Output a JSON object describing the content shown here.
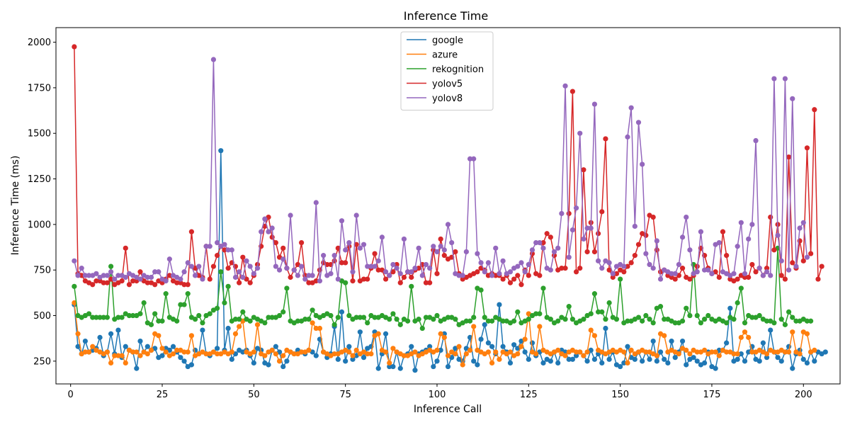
{
  "chart_data": {
    "type": "line",
    "title": "Inference Time",
    "xlabel": "Inference Call",
    "ylabel": "Inference Time (ms)",
    "xlim": [
      -4,
      210
    ],
    "ylim": [
      125,
      2080
    ],
    "xticks": [
      0,
      25,
      50,
      75,
      100,
      125,
      150,
      175,
      200
    ],
    "yticks": [
      250,
      500,
      750,
      1000,
      1250,
      1500,
      1750,
      2000
    ],
    "grid": false,
    "legend_position": "top-center",
    "marker": "circle",
    "series": [
      {
        "name": "google",
        "color": "#1f77b4",
        "values": [
          560,
          330,
          290,
          360,
          300,
          310,
          320,
          380,
          280,
          300,
          400,
          290,
          420,
          270,
          330,
          310,
          300,
          210,
          360,
          300,
          330,
          310,
          320,
          270,
          280,
          320,
          310,
          330,
          300,
          270,
          250,
          220,
          230,
          310,
          290,
          420,
          290,
          280,
          300,
          320,
          1405,
          310,
          430,
          260,
          290,
          310,
          300,
          310,
          280,
          240,
          320,
          310,
          240,
          230,
          310,
          330,
          300,
          220,
          250,
          300,
          290,
          310,
          300,
          290,
          310,
          300,
          280,
          370,
          300,
          270,
          290,
          440,
          260,
          520,
          250,
          330,
          260,
          280,
          410,
          270,
          320,
          330,
          410,
          210,
          290,
          400,
          220,
          220,
          300,
          210,
          280,
          290,
          330,
          200,
          290,
          300,
          310,
          330,
          220,
          250,
          310,
          400,
          220,
          270,
          320,
          260,
          250,
          320,
          380,
          250,
          230,
          370,
          450,
          350,
          330,
          290,
          560,
          330,
          300,
          240,
          340,
          320,
          360,
          300,
          260,
          350,
          280,
          300,
          240,
          260,
          250,
          300,
          240,
          310,
          300,
          260,
          260,
          280,
          300,
          280,
          250,
          310,
          260,
          290,
          240,
          430,
          260,
          300,
          230,
          220,
          240,
          330,
          270,
          260,
          300,
          250,
          300,
          260,
          360,
          250,
          300,
          260,
          240,
          360,
          270,
          300,
          360,
          230,
          260,
          270,
          250,
          230,
          240,
          300,
          220,
          210,
          310,
          310,
          350,
          540,
          250,
          260,
          290,
          250,
          300,
          330,
          260,
          250,
          350,
          270,
          420,
          300,
          270,
          250,
          300,
          330,
          210,
          290,
          310,
          260,
          240,
          300,
          250,
          300,
          290,
          300
        ]
      },
      {
        "name": "azure",
        "color": "#ff7f0e",
        "values": [
          570,
          400,
          290,
          300,
          300,
          330,
          310,
          300,
          290,
          300,
          240,
          280,
          280,
          280,
          240,
          310,
          300,
          300,
          280,
          300,
          290,
          310,
          400,
          390,
          320,
          300,
          280,
          290,
          310,
          310,
          300,
          300,
          390,
          280,
          290,
          300,
          290,
          290,
          300,
          290,
          290,
          300,
          290,
          300,
          400,
          440,
          470,
          300,
          290,
          300,
          450,
          290,
          280,
          300,
          310,
          290,
          250,
          280,
          310,
          300,
          290,
          290,
          300,
          300,
          310,
          460,
          430,
          430,
          300,
          290,
          280,
          290,
          290,
          300,
          310,
          300,
          280,
          310,
          290,
          300,
          290,
          290,
          390,
          400,
          310,
          300,
          240,
          320,
          300,
          290,
          280,
          280,
          290,
          300,
          280,
          290,
          300,
          310,
          300,
          310,
          400,
          380,
          280,
          300,
          290,
          330,
          230,
          290,
          310,
          440,
          310,
          300,
          290,
          300,
          240,
          300,
          260,
          300,
          290,
          300,
          280,
          290,
          330,
          370,
          510,
          300,
          290,
          440,
          310,
          300,
          290,
          300,
          310,
          290,
          280,
          300,
          310,
          300,
          300,
          280,
          300,
          420,
          390,
          310,
          300,
          290,
          300,
          310,
          300,
          310,
          300,
          240,
          310,
          290,
          300,
          310,
          300,
          300,
          290,
          280,
          400,
          390,
          300,
          310,
          300,
          290,
          320,
          310,
          290,
          310,
          300,
          300,
          310,
          290,
          300,
          300,
          280,
          310,
          300,
          300,
          290,
          290,
          380,
          410,
          380,
          300,
          300,
          310,
          300,
          290,
          310,
          300,
          300,
          310,
          300,
          300,
          410,
          300,
          290,
          410,
          400,
          300,
          310
        ]
      },
      {
        "name": "rekognition",
        "color": "#2ca02c",
        "values": [
          660,
          500,
          490,
          500,
          510,
          490,
          490,
          490,
          490,
          490,
          770,
          480,
          490,
          490,
          510,
          500,
          500,
          500,
          510,
          570,
          460,
          450,
          510,
          470,
          470,
          620,
          490,
          480,
          470,
          560,
          560,
          620,
          490,
          480,
          500,
          460,
          500,
          510,
          530,
          540,
          740,
          570,
          660,
          470,
          480,
          480,
          520,
          480,
          470,
          490,
          480,
          470,
          460,
          490,
          490,
          490,
          500,
          520,
          650,
          470,
          460,
          470,
          470,
          480,
          480,
          530,
          500,
          490,
          500,
          510,
          500,
          450,
          490,
          690,
          680,
          500,
          480,
          490,
          490,
          490,
          460,
          500,
          490,
          490,
          500,
          490,
          480,
          510,
          480,
          450,
          480,
          470,
          660,
          470,
          480,
          430,
          490,
          490,
          480,
          500,
          470,
          480,
          490,
          490,
          480,
          450,
          460,
          470,
          470,
          490,
          650,
          640,
          490,
          470,
          470,
          490,
          480,
          470,
          470,
          460,
          470,
          520,
          460,
          470,
          480,
          500,
          510,
          510,
          650,
          490,
          480,
          460,
          470,
          490,
          480,
          550,
          480,
          460,
          470,
          480,
          500,
          510,
          620,
          520,
          520,
          480,
          570,
          490,
          480,
          700,
          460,
          470,
          470,
          480,
          490,
          470,
          500,
          480,
          460,
          540,
          550,
          480,
          480,
          470,
          460,
          460,
          470,
          540,
          500,
          780,
          500,
          460,
          480,
          500,
          480,
          470,
          480,
          470,
          460,
          490,
          480,
          570,
          650,
          460,
          500,
          490,
          490,
          500,
          480,
          470,
          470,
          460,
          870,
          480,
          450,
          520,
          490,
          470,
          470,
          480,
          470,
          470
        ]
      },
      {
        "name": "yolov5",
        "color": "#d62728",
        "values": [
          1975,
          730,
          720,
          690,
          680,
          670,
          690,
          690,
          680,
          680,
          700,
          670,
          680,
          690,
          870,
          670,
          690,
          690,
          740,
          690,
          680,
          680,
          670,
          690,
          680,
          700,
          720,
          690,
          680,
          680,
          670,
          670,
          960,
          760,
          720,
          710,
          880,
          700,
          770,
          830,
          880,
          860,
          760,
          790,
          770,
          680,
          820,
          700,
          680,
          720,
          780,
          880,
          990,
          1040,
          930,
          900,
          820,
          870,
          760,
          710,
          750,
          780,
          900,
          720,
          680,
          680,
          690,
          750,
          790,
          780,
          780,
          800,
          870,
          790,
          790,
          880,
          690,
          890,
          690,
          700,
          700,
          760,
          840,
          750,
          750,
          700,
          720,
          740,
          780,
          680,
          710,
          740,
          710,
          750,
          760,
          780,
          680,
          680,
          860,
          730,
          920,
          830,
          810,
          820,
          850,
          730,
          700,
          710,
          720,
          730,
          740,
          760,
          750,
          720,
          730,
          720,
          720,
          700,
          720,
          680,
          700,
          720,
          670,
          750,
          720,
          840,
          730,
          720,
          900,
          950,
          930,
          830,
          750,
          760,
          760,
          1060,
          1730,
          740,
          760,
          1300,
          850,
          1010,
          850,
          950,
          1070,
          1470,
          750,
          710,
          730,
          750,
          740,
          770,
          790,
          830,
          890,
          950,
          940,
          1050,
          1040,
          860,
          740,
          750,
          720,
          710,
          700,
          720,
          760,
          710,
          700,
          720,
          770,
          870,
          830,
          760,
          730,
          740,
          710,
          960,
          830,
          700,
          690,
          700,
          720,
          710,
          710,
          780,
          740,
          760,
          720,
          760,
          1040,
          860,
          1000,
          720,
          700,
          1370,
          790,
          760,
          910,
          800,
          1420,
          840,
          1630,
          700,
          770
        ]
      },
      {
        "name": "yolov8",
        "color": "#9467bd",
        "values": [
          800,
          720,
          760,
          720,
          720,
          720,
          730,
          710,
          720,
          720,
          740,
          700,
          720,
          720,
          710,
          730,
          720,
          710,
          700,
          720,
          710,
          710,
          740,
          740,
          700,
          690,
          810,
          720,
          710,
          700,
          740,
          790,
          770,
          720,
          770,
          700,
          880,
          880,
          1905,
          900,
          880,
          890,
          860,
          860,
          710,
          740,
          710,
          800,
          770,
          730,
          760,
          960,
          1030,
          960,
          980,
          770,
          750,
          810,
          760,
          1050,
          750,
          720,
          770,
          700,
          720,
          720,
          1120,
          690,
          830,
          720,
          730,
          830,
          700,
          1020,
          860,
          900,
          740,
          1050,
          870,
          890,
          770,
          770,
          770,
          800,
          930,
          740,
          720,
          780,
          760,
          730,
          920,
          740,
          740,
          760,
          870,
          720,
          780,
          760,
          880,
          850,
          880,
          860,
          1000,
          900,
          730,
          720,
          720,
          850,
          1360,
          1360,
          840,
          790,
          740,
          790,
          720,
          870,
          730,
          800,
          730,
          740,
          760,
          770,
          790,
          740,
          780,
          860,
          900,
          900,
          870,
          760,
          750,
          850,
          870,
          1060,
          1760,
          820,
          970,
          1090,
          1500,
          920,
          980,
          980,
          1660,
          800,
          760,
          800,
          790,
          730,
          770,
          780,
          770,
          1480,
          1640,
          990,
          1560,
          1330,
          840,
          780,
          760,
          910,
          700,
          750,
          740,
          730,
          730,
          780,
          930,
          1040,
          860,
          730,
          740,
          960,
          750,
          750,
          730,
          890,
          900,
          740,
          730,
          720,
          730,
          880,
          1010,
          730,
          920,
          1000,
          1460,
          760,
          720,
          740,
          720,
          1800,
          940,
          800,
          1800,
          750,
          1690,
          770,
          980,
          1010,
          820
        ]
      }
    ]
  }
}
